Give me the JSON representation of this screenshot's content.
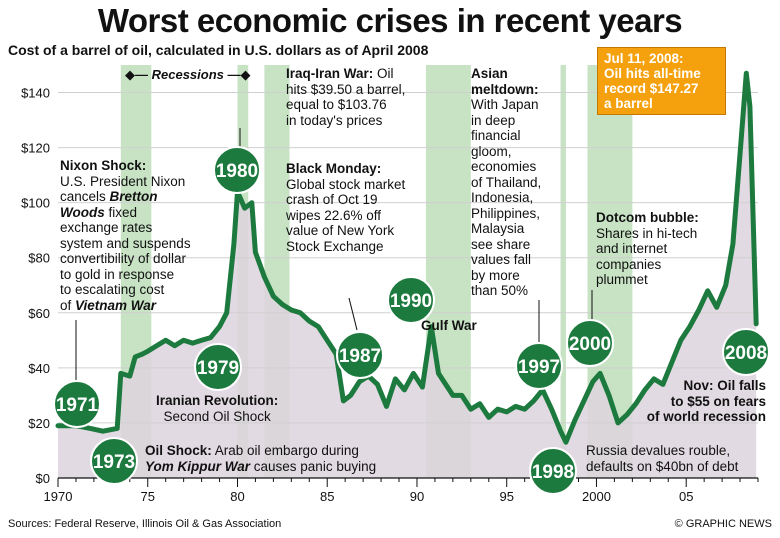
{
  "title": "Worst economic crises in recent years",
  "subtitle": "Cost of a barrel of oil, calculated in U.S. dollars as of April 2008",
  "recessions_label": "Recessions",
  "footer": {
    "sources": "Sources: Federal Reserve, Illinois Oil & Gas Association",
    "credit": "© GRAPHIC NEWS"
  },
  "colors": {
    "line": "#1d7a3e",
    "circle": "#1d7a3e",
    "recession_band": "#c7e3c4",
    "area_fill": "#ddd4dd",
    "callout": "#f5a10e"
  },
  "annotations": {
    "nixon_title": "Nixon Shock:",
    "nixon_l1": "U.S. President Nixon",
    "nixon_l2a": "cancels ",
    "nixon_l2b": "Bretton",
    "nixon_l3a": "Woods",
    "nixon_l3b": " fixed",
    "nixon_l4": "exchange rates",
    "nixon_l5": "system and suspends",
    "nixon_l6": "convertibility of dollar",
    "nixon_l7": "to gold in response",
    "nixon_l8": "to escalating cost",
    "nixon_l9a": "of ",
    "nixon_l9b": "Vietnam War",
    "iraq_title": "Iraq-Iran War:",
    "iraq_l1": " Oil",
    "iraq_l2": "hits $39.50 a barrel,",
    "iraq_l3": "equal to $103.76",
    "iraq_l4": "in today's prices",
    "black_title": "Black Monday:",
    "black_l1": "Global stock market",
    "black_l2": "crash of Oct 19",
    "black_l3": "wipes 22.6% off",
    "black_l4": "value of New York",
    "black_l5": "Stock Exchange",
    "asian_title1": "Asian",
    "asian_title2": "meltdown:",
    "asian_l1": "With Japan",
    "asian_l2": "in deep",
    "asian_l3": "financial",
    "asian_l4": "gloom,",
    "asian_l5": "economies",
    "asian_l6": "of Thailand,",
    "asian_l7": "Indonesia,",
    "asian_l8": "Philippines,",
    "asian_l9": "Malaysia",
    "asian_l10": "see share",
    "asian_l11": "values fall",
    "asian_l12": "by more",
    "asian_l13": "than 50%",
    "dotcom_title": "Dotcom bubble:",
    "dotcom_l1": "Shares in hi-tech",
    "dotcom_l2": "and internet",
    "dotcom_l3": "companies",
    "dotcom_l4": "plummet",
    "gulf_title": "Gulf War",
    "iranian_title": "Iranian Revolution:",
    "iranian_l1": "Second Oil Shock",
    "oilshock_title": "Oil Shock:",
    "oilshock_l1": " Arab oil embargo during",
    "oilshock_l2a": "Yom Kippur War",
    "oilshock_l2b": " causes panic buying",
    "nov_l1": "Nov: Oil falls",
    "nov_l2": "to $55 on fears",
    "nov_l3": "of world recession",
    "russia_l1": "Russia devalues rouble,",
    "russia_l2": "defaults on $40bn of debt",
    "callout_l1": "Jul 11, 2008:",
    "callout_l2": "Oil hits all-time",
    "callout_l3": "record $147.27",
    "callout_l4": "a barrel"
  },
  "chart_data": {
    "type": "line",
    "title": "Worst economic crises in recent years",
    "subtitle": "Cost of a barrel of oil, calculated in U.S. dollars as of April 2008",
    "xlabel": "",
    "ylabel": "",
    "ylim": [
      0,
      150
    ],
    "xlim": [
      1970,
      2009
    ],
    "y_ticks": [
      0,
      20,
      40,
      60,
      80,
      100,
      120,
      140
    ],
    "y_tick_labels": [
      "$0",
      "$20",
      "$40",
      "$60",
      "$80",
      "$100",
      "$120",
      "$140"
    ],
    "x_ticks": [
      1970,
      1975,
      1980,
      1985,
      1990,
      1995,
      2000,
      2005
    ],
    "x_tick_labels": [
      "1970",
      "75",
      "80",
      "85",
      "90",
      "95",
      "2000",
      "05"
    ],
    "recessions": [
      [
        1973.5,
        1975.2
      ],
      [
        1980.0,
        1980.6
      ],
      [
        1981.5,
        1982.9
      ],
      [
        1990.5,
        1993.0
      ],
      [
        1998.0,
        1998.3
      ],
      [
        1999.5,
        2002.0
      ]
    ],
    "series": [
      {
        "name": "Oil price (April 2008 US$)",
        "x": [
          1970,
          1971,
          1971.8,
          1972.5,
          1973.3,
          1973.5,
          1974.0,
          1974.3,
          1974.7,
          1975.0,
          1975.5,
          1976.0,
          1976.5,
          1977.0,
          1977.5,
          1978.0,
          1978.5,
          1979.0,
          1979.4,
          1979.8,
          1980.0,
          1980.4,
          1980.8,
          1981.0,
          1981.5,
          1982.0,
          1982.5,
          1983.0,
          1983.5,
          1984.0,
          1984.5,
          1985.0,
          1985.5,
          1985.9,
          1986.3,
          1986.8,
          1987.3,
          1987.8,
          1988.3,
          1988.8,
          1989.3,
          1989.8,
          1990.3,
          1990.8,
          1991.2,
          1991.6,
          1992.0,
          1992.5,
          1993.0,
          1993.5,
          1994.0,
          1994.5,
          1995.0,
          1995.5,
          1996.0,
          1996.5,
          1997.0,
          1997.5,
          1998.0,
          1998.3,
          1998.8,
          1999.3,
          1999.8,
          2000.2,
          2000.7,
          2001.2,
          2001.7,
          2002.2,
          2002.7,
          2003.2,
          2003.7,
          2004.2,
          2004.7,
          2005.2,
          2005.7,
          2006.2,
          2006.7,
          2007.2,
          2007.6,
          2008.0,
          2008.35,
          2008.55,
          2008.9
        ],
        "y": [
          19,
          19,
          18,
          17,
          18,
          38,
          37,
          44,
          45,
          46,
          48,
          50,
          48,
          50,
          49,
          50,
          51,
          55,
          60,
          85,
          104,
          98,
          100,
          82,
          73,
          66,
          63,
          61,
          60,
          57,
          55,
          50,
          45,
          28,
          30,
          35,
          37,
          34,
          26,
          36,
          32,
          38,
          33,
          55,
          38,
          34,
          30,
          30,
          25,
          27,
          22,
          25,
          24,
          26,
          25,
          28,
          32,
          25,
          17,
          13,
          21,
          28,
          35,
          38,
          30,
          20,
          23,
          27,
          32,
          36,
          34,
          42,
          50,
          55,
          61,
          68,
          62,
          70,
          85,
          118,
          147,
          135,
          56
        ]
      }
    ],
    "highlighted_events": [
      {
        "label": "1971",
        "x": 1971.0,
        "y": 19
      },
      {
        "label": "1973",
        "x": 1973.8,
        "y": 37
      },
      {
        "label": "1979",
        "x": 1979.2,
        "y": 58
      },
      {
        "label": "1980",
        "x": 1980.0,
        "y": 104
      },
      {
        "label": "1987",
        "x": 1987.3,
        "y": 37
      },
      {
        "label": "1990",
        "x": 1990.8,
        "y": 55
      },
      {
        "label": "1997",
        "x": 1997.0,
        "y": 32
      },
      {
        "label": "1998",
        "x": 1998.3,
        "y": 13
      },
      {
        "label": "2000",
        "x": 2000.2,
        "y": 38
      },
      {
        "label": "2008",
        "x": 2008.55,
        "y": 56
      }
    ]
  }
}
